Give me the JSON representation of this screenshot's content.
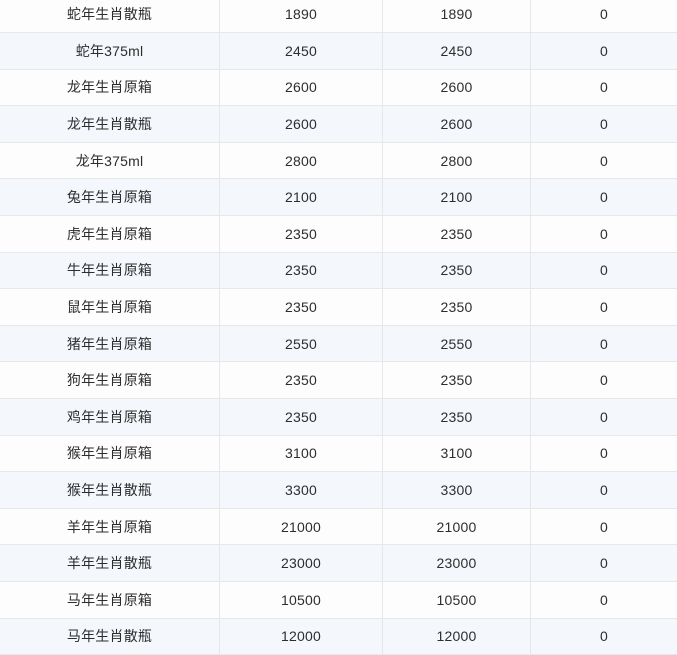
{
  "colors": {
    "stripe_row": "#f4f8fd",
    "white_row": "#fdfdfd",
    "border": "#e7e7e7",
    "text": "#2d2d2d"
  },
  "table": {
    "rows": [
      {
        "cells": [
          "蛇年生肖散瓶",
          "1890",
          "1890",
          "0"
        ]
      },
      {
        "cells": [
          "蛇年375ml",
          "2450",
          "2450",
          "0"
        ]
      },
      {
        "cells": [
          "龙年生肖原箱",
          "2600",
          "2600",
          "0"
        ]
      },
      {
        "cells": [
          "龙年生肖散瓶",
          "2600",
          "2600",
          "0"
        ]
      },
      {
        "cells": [
          "龙年375ml",
          "2800",
          "2800",
          "0"
        ]
      },
      {
        "cells": [
          "兔年生肖原箱",
          "2100",
          "2100",
          "0"
        ]
      },
      {
        "cells": [
          "虎年生肖原箱",
          "2350",
          "2350",
          "0"
        ]
      },
      {
        "cells": [
          "牛年生肖原箱",
          "2350",
          "2350",
          "0"
        ]
      },
      {
        "cells": [
          "鼠年生肖原箱",
          "2350",
          "2350",
          "0"
        ]
      },
      {
        "cells": [
          "猪年生肖原箱",
          "2550",
          "2550",
          "0"
        ]
      },
      {
        "cells": [
          "狗年生肖原箱",
          "2350",
          "2350",
          "0"
        ]
      },
      {
        "cells": [
          "鸡年生肖原箱",
          "2350",
          "2350",
          "0"
        ]
      },
      {
        "cells": [
          "猴年生肖原箱",
          "3100",
          "3100",
          "0"
        ]
      },
      {
        "cells": [
          "猴年生肖散瓶",
          "3300",
          "3300",
          "0"
        ]
      },
      {
        "cells": [
          "羊年生肖原箱",
          "21000",
          "21000",
          "0"
        ]
      },
      {
        "cells": [
          "羊年生肖散瓶",
          "23000",
          "23000",
          "0"
        ]
      },
      {
        "cells": [
          "马年生肖原箱",
          "10500",
          "10500",
          "0"
        ]
      },
      {
        "cells": [
          "马年生肖散瓶",
          "12000",
          "12000",
          "0"
        ]
      }
    ]
  }
}
